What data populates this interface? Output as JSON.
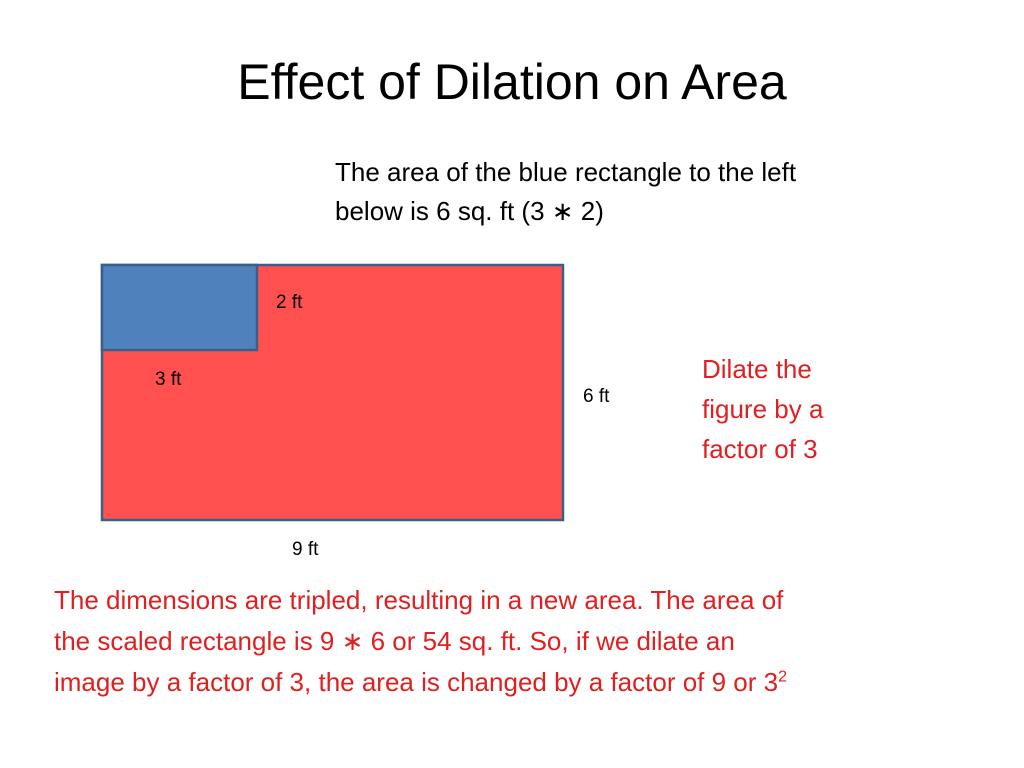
{
  "slide": {
    "title": "Effect of Dilation on Area",
    "intro_lines": [
      "The area of the blue rectangle to the left",
      "below is 6 sq. ft  (3 ∗ 2)"
    ],
    "figure": {
      "large_rect_color": "#ff5050",
      "small_rect_color": "#4f81bd",
      "stroke_color": "#3a5f8a",
      "labels": {
        "small_height": "2 ft",
        "small_width": "3 ft",
        "large_height": "6 ft",
        "large_width": "9 ft"
      }
    },
    "side_note_lines": [
      "Dilate the",
      "figure by a",
      "factor of 3"
    ],
    "conclusion_lines": [
      "The dimensions are tripled, resulting in a new area.  The area of",
      "the scaled rectangle is 9 ∗ 6 or 54 sq. ft.   So, if we dilate an",
      "image by a factor of 3, the area is changed by a factor of 9 or 3"
    ],
    "conclusion_exponent": "2",
    "accent_color": "#e02020"
  }
}
